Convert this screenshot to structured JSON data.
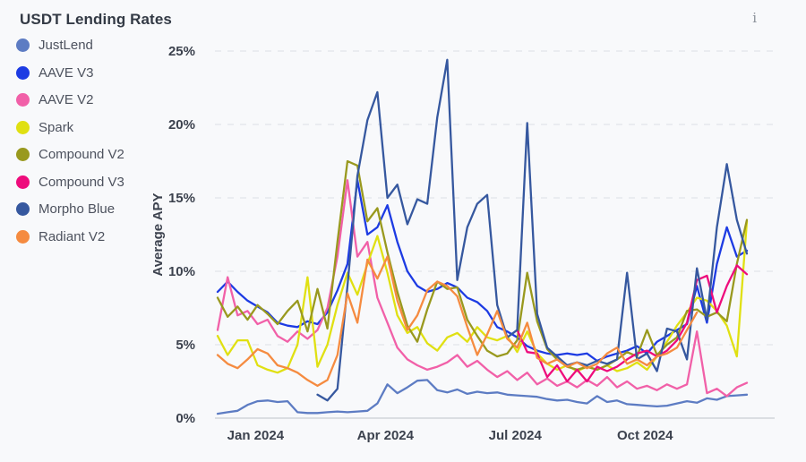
{
  "header": {
    "title": "USDT Lending Rates",
    "info_icon_glyph": "i"
  },
  "chart_data": {
    "type": "line",
    "title": "USDT Lending Rates",
    "xlabel": "",
    "ylabel": "Average APY",
    "ylim": [
      0,
      26
    ],
    "grid": "horizontal-dashed",
    "legend_position": "left",
    "x_unit": "week",
    "n_points": 54,
    "x_tick_labels": [
      "Jan 2024",
      "Apr 2024",
      "Jul 2024",
      "Oct 2024"
    ],
    "x_tick_indices": [
      3.8,
      16.8,
      29.8,
      42.8
    ],
    "y_tick_values": [
      0,
      5,
      10,
      15,
      20,
      25
    ],
    "y_tick_labels": [
      "0%",
      "5%",
      "10%",
      "15%",
      "20%",
      "25%"
    ],
    "series": [
      {
        "name": "JustLend",
        "color": "#5d7cc3",
        "values": [
          0.3,
          0.4,
          0.5,
          0.9,
          1.15,
          1.2,
          1.1,
          1.15,
          0.4,
          0.35,
          0.35,
          0.4,
          0.45,
          0.4,
          0.45,
          0.5,
          1.0,
          2.3,
          1.7,
          2.1,
          2.55,
          2.6,
          1.9,
          1.75,
          1.95,
          1.65,
          1.8,
          1.7,
          1.75,
          1.6,
          1.55,
          1.5,
          1.45,
          1.3,
          1.2,
          1.25,
          1.1,
          1.0,
          1.5,
          1.1,
          1.2,
          0.95,
          0.9,
          0.85,
          0.8,
          0.85,
          1.0,
          1.15,
          1.05,
          1.35,
          1.25,
          1.5,
          1.55,
          1.6
        ]
      },
      {
        "name": "AAVE V3",
        "color": "#1d3be3",
        "values": [
          8.6,
          9.3,
          8.6,
          8.0,
          7.6,
          7.2,
          6.5,
          6.3,
          6.2,
          6.6,
          6.4,
          7.2,
          8.7,
          10.5,
          16.2,
          12.5,
          13.0,
          14.5,
          12.0,
          10.0,
          9.0,
          8.6,
          8.8,
          9.2,
          8.9,
          8.2,
          7.9,
          7.3,
          6.2,
          5.9,
          5.5,
          4.9,
          4.6,
          4.4,
          4.3,
          4.4,
          4.3,
          4.4,
          3.9,
          4.2,
          4.4,
          4.6,
          4.9,
          4.4,
          5.2,
          5.6,
          6.0,
          6.4,
          9.0,
          6.5,
          10.5,
          13.0,
          11.0,
          11.4
        ]
      },
      {
        "name": "AAVE V2",
        "color": "#f160a8",
        "values": [
          6.0,
          9.6,
          7.0,
          7.3,
          6.4,
          6.7,
          5.6,
          5.2,
          5.9,
          5.4,
          6.0,
          7.5,
          11.0,
          16.2,
          11.0,
          12.0,
          8.2,
          6.5,
          4.8,
          4.0,
          3.6,
          3.3,
          3.5,
          3.8,
          4.3,
          3.5,
          3.9,
          3.3,
          2.8,
          3.2,
          2.6,
          3.1,
          2.3,
          2.7,
          2.2,
          2.5,
          2.1,
          2.6,
          2.2,
          2.8,
          2.1,
          2.5,
          2.0,
          2.2,
          1.9,
          2.3,
          2.0,
          2.3,
          5.9,
          1.7,
          2.0,
          1.5,
          2.1,
          2.4
        ]
      },
      {
        "name": "Spark",
        "color": "#e0e012",
        "values": [
          5.6,
          4.3,
          5.3,
          5.3,
          3.6,
          3.3,
          3.1,
          3.4,
          5.0,
          9.6,
          3.5,
          5.0,
          7.7,
          9.9,
          8.4,
          10.5,
          12.4,
          9.9,
          7.0,
          5.8,
          6.2,
          5.1,
          4.6,
          5.5,
          5.8,
          5.2,
          6.2,
          5.5,
          5.3,
          5.6,
          4.5,
          5.9,
          4.4,
          3.7,
          3.3,
          3.6,
          3.2,
          3.5,
          3.3,
          3.6,
          3.2,
          3.4,
          3.8,
          3.3,
          4.2,
          5.2,
          6.3,
          7.2,
          8.2,
          8.0,
          7.3,
          6.3,
          4.2,
          13.4
        ]
      },
      {
        "name": "Compound V2",
        "color": "#99991e",
        "values": [
          8.2,
          6.9,
          7.6,
          6.7,
          7.7,
          7.1,
          6.4,
          7.3,
          8.0,
          5.9,
          8.8,
          6.1,
          12.0,
          17.5,
          17.2,
          13.4,
          14.3,
          11.3,
          8.6,
          6.3,
          5.2,
          7.4,
          9.3,
          8.8,
          8.9,
          6.7,
          5.6,
          4.6,
          4.2,
          4.4,
          5.3,
          9.9,
          6.6,
          4.7,
          4.0,
          3.5,
          3.3,
          3.5,
          3.3,
          3.6,
          4.0,
          4.5,
          4.2,
          6.0,
          4.3,
          5.0,
          5.5,
          7.3,
          7.4,
          6.9,
          7.2,
          6.6,
          10.5,
          13.5
        ]
      },
      {
        "name": "Compound V3",
        "color": "#ee0c7c",
        "values": [
          null,
          null,
          null,
          null,
          null,
          null,
          null,
          null,
          null,
          null,
          null,
          null,
          null,
          null,
          null,
          null,
          null,
          null,
          null,
          null,
          null,
          null,
          null,
          null,
          null,
          null,
          null,
          null,
          null,
          null,
          6.0,
          4.5,
          4.4,
          2.8,
          3.6,
          2.5,
          3.3,
          2.5,
          3.5,
          3.2,
          3.5,
          4.0,
          4.4,
          4.6,
          4.2,
          4.6,
          5.3,
          6.5,
          9.4,
          9.7,
          7.2,
          9.0,
          10.4,
          9.8
        ]
      },
      {
        "name": "Morpho Blue",
        "color": "#36589f",
        "values": [
          null,
          null,
          null,
          null,
          null,
          null,
          null,
          null,
          null,
          null,
          1.6,
          1.2,
          2.0,
          9.0,
          16.5,
          20.3,
          22.2,
          15.0,
          15.9,
          13.2,
          14.9,
          14.6,
          20.5,
          24.4,
          9.4,
          13.0,
          14.6,
          15.2,
          7.7,
          5.5,
          6.0,
          20.1,
          7.1,
          4.8,
          4.2,
          3.6,
          3.8,
          3.6,
          3.9,
          3.7,
          4.0,
          9.9,
          4.0,
          4.4,
          3.2,
          6.1,
          5.9,
          4.0,
          10.2,
          6.7,
          13.0,
          17.3,
          13.5,
          11.2
        ]
      },
      {
        "name": "Radiant V2",
        "color": "#f58b40",
        "values": [
          4.3,
          3.7,
          3.4,
          4.0,
          4.7,
          4.4,
          3.6,
          3.4,
          3.1,
          2.6,
          2.2,
          2.6,
          4.3,
          8.5,
          6.5,
          10.8,
          9.5,
          11.0,
          8.0,
          6.0,
          7.0,
          8.7,
          9.3,
          9.0,
          8.3,
          6.2,
          4.3,
          5.7,
          7.3,
          5.4,
          4.8,
          6.5,
          4.1,
          3.7,
          4.0,
          3.5,
          3.8,
          3.4,
          3.7,
          4.4,
          4.8,
          3.7,
          4.0,
          3.6,
          4.2,
          4.4,
          4.8,
          6.0,
          7.2,
          null,
          null,
          null,
          null,
          null
        ]
      }
    ]
  }
}
